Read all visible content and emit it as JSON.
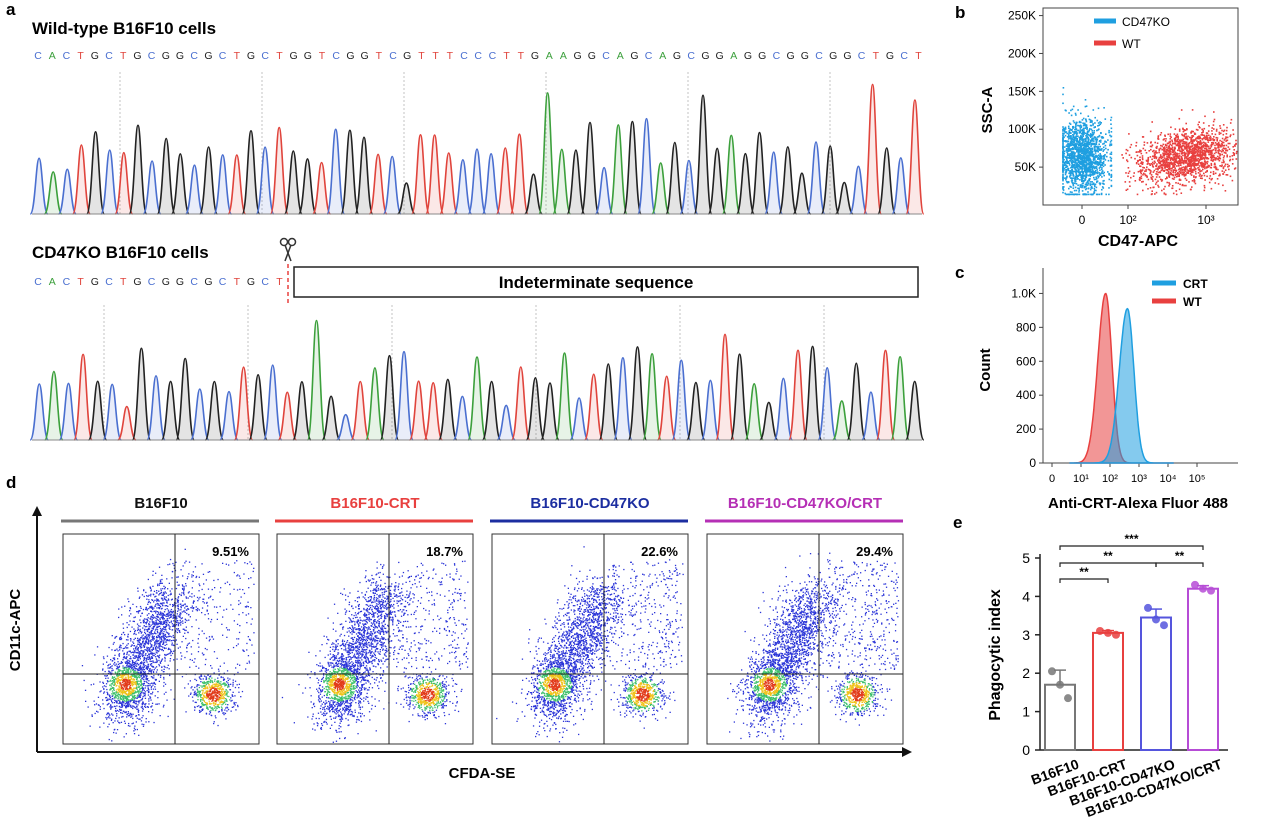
{
  "panel_labels": {
    "a": "a",
    "b": "b",
    "c": "c",
    "d": "d",
    "e": "e"
  },
  "colors": {
    "A": "#3ca03c",
    "C": "#4a6fd0",
    "G": "#222222",
    "T": "#e0443c",
    "blue": "#1f9fe0",
    "red": "#e8403f",
    "navy": "#1c2ea0",
    "magenta": "#b52fb5",
    "gray": "#777777"
  },
  "panel_a": {
    "wt_title": "Wild-type B16F10 cells",
    "wt_sequence": "CACTGCTGCGGCGCTGCTGGTCGGTCGTTTCCCTTGAAGGCAGCAGCGGAGGCGGCGGCTGCT",
    "ko_title": "CD47KO B16F10 cells",
    "ko_sequence": "CACTGCTGCGGCGCTGCT",
    "indeterminate_label": "Indeterminate sequence",
    "scissors_icon": "scissors-icon"
  },
  "chart_data": [
    {
      "type": "scatter",
      "title": "",
      "xlabel": "CD47-APC",
      "ylabel": "SSC-A",
      "xticks": [
        "0",
        "10²",
        "10³"
      ],
      "yticks": [
        "50K",
        "100K",
        "150K",
        "200K",
        "250K"
      ],
      "ylim": [
        0,
        260000
      ],
      "legend_position": "top-right",
      "series": [
        {
          "name": "CD47KO",
          "color": "#1f9fe0",
          "x_center_decades": 0.0,
          "y_center": 65000,
          "y_spread": 22000
        },
        {
          "name": "WT",
          "color": "#e8403f",
          "x_center_decades": 2.75,
          "y_center": 65000,
          "y_spread": 20000
        }
      ]
    },
    {
      "type": "area",
      "title": "",
      "xlabel": "Anti-CRT-Alexa Fluor 488",
      "ylabel": "Count",
      "xticks": [
        "0",
        "10¹",
        "10²",
        "10³",
        "10⁴",
        "10⁵"
      ],
      "yticks": [
        "0",
        "200",
        "400",
        "600",
        "800",
        "1.0K"
      ],
      "ylim": [
        0,
        1150
      ],
      "legend_position": "top-right",
      "series": [
        {
          "name": "CRT",
          "color": "#1f9fe0",
          "peak_x_log10": 2.6,
          "peak_y": 910,
          "width_log10": 0.28
        },
        {
          "name": "WT",
          "color": "#e8403f",
          "peak_x_log10": 1.85,
          "peak_y": 1000,
          "width_log10": 0.27
        }
      ]
    },
    {
      "type": "scatter",
      "title": "",
      "xlabel": "CFDA-SE",
      "ylabel": "CD11c-APC",
      "panels": [
        {
          "name": "B16F10",
          "color": "#777777",
          "percent": "9.51%"
        },
        {
          "name": "B16F10-CRT",
          "color": "#e8403f",
          "percent": "18.7%"
        },
        {
          "name": "B16F10-CD47KO",
          "color": "#1c2ea0",
          "percent": "22.6%"
        },
        {
          "name": "B16F10-CD47KO/CRT",
          "color": "#b52fb5",
          "percent": "29.4%"
        }
      ]
    },
    {
      "type": "bar",
      "title": "",
      "ylabel": "Phagocytic index",
      "xlabel": "",
      "categories": [
        "B16F10",
        "B16F10-CRT",
        "B16F10-CD47KO",
        "B16F10-CD47KO/CRT"
      ],
      "colors": [
        "#777777",
        "#e8403f",
        "#5555dd",
        "#b64cd6"
      ],
      "values": [
        1.7,
        3.05,
        3.45,
        4.2
      ],
      "errors": [
        0.38,
        0.06,
        0.22,
        0.08
      ],
      "points": [
        [
          2.05,
          1.7,
          1.35
        ],
        [
          3.1,
          3.05,
          3.0
        ],
        [
          3.7,
          3.4,
          3.25
        ],
        [
          4.3,
          4.2,
          4.15
        ]
      ],
      "ylim": [
        0,
        5
      ],
      "yticks": [
        "0",
        "1",
        "2",
        "3",
        "4",
        "5"
      ],
      "significance": [
        {
          "from": 0,
          "to": 1,
          "label": "**"
        },
        {
          "from": 0,
          "to": 2,
          "label": "**"
        },
        {
          "from": 2,
          "to": 3,
          "label": "**"
        },
        {
          "from": 0,
          "to": 3,
          "label": "***"
        }
      ]
    }
  ]
}
